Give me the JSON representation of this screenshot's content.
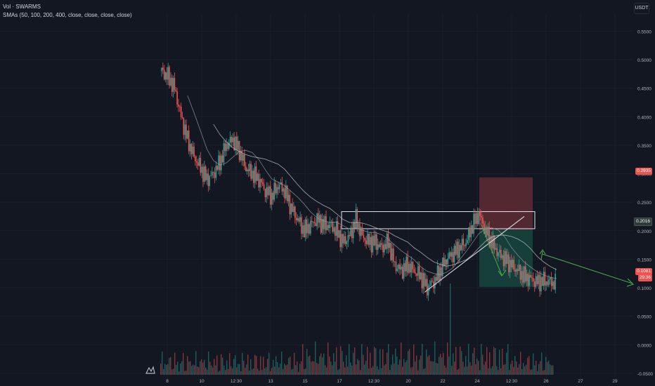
{
  "legend": {
    "title": "Vol · SWARMS",
    "smas": "SMAs (50, 100, 200, 400, close, close, close, close)"
  },
  "currency": "USDT",
  "colors": {
    "background": "#131722",
    "grid": "#1b1f2b",
    "up": "#26a69a",
    "down": "#ef5350",
    "sma": "#9598a1",
    "annotation": "#4caf50",
    "stop_zone": "#5b2a33",
    "target_zone": "#17423d"
  },
  "price_tags": {
    "stop": "0.2935",
    "entry": "0.2016",
    "current": "0.1081",
    "countdown": "29:36"
  },
  "chart_data": {
    "type": "candlestick",
    "title": "Vol · SWARMS",
    "y_ticks": [
      "0.5500",
      "0.5000",
      "0.4500",
      "0.4000",
      "0.3500",
      "0.3000",
      "0.2500",
      "0.2000",
      "0.1500",
      "0.1000",
      "0.0500",
      "0.0000",
      "-0.0500"
    ],
    "ylim": [
      -0.06,
      0.58
    ],
    "x_ticks": [
      "8",
      "10",
      "12:30",
      "13",
      "15",
      "17",
      "12:30",
      "20",
      "22",
      "24",
      "12:30",
      "26",
      "27",
      "29"
    ],
    "close_path": [
      [
        0,
        0.48
      ],
      [
        1,
        0.47
      ],
      [
        2,
        0.45
      ],
      [
        3,
        0.4
      ],
      [
        4,
        0.36
      ],
      [
        5,
        0.33
      ],
      [
        6,
        0.31
      ],
      [
        7,
        0.29
      ],
      [
        8,
        0.3
      ],
      [
        9,
        0.32
      ],
      [
        10,
        0.35
      ],
      [
        11,
        0.36
      ],
      [
        12,
        0.34
      ],
      [
        13,
        0.31
      ],
      [
        14,
        0.3
      ],
      [
        15,
        0.29
      ],
      [
        16,
        0.27
      ],
      [
        17,
        0.26
      ],
      [
        18,
        0.28
      ],
      [
        19,
        0.27
      ],
      [
        20,
        0.24
      ],
      [
        21,
        0.22
      ],
      [
        22,
        0.2
      ],
      [
        23,
        0.21
      ],
      [
        24,
        0.22
      ],
      [
        25,
        0.21
      ],
      [
        26,
        0.21
      ],
      [
        27,
        0.2
      ],
      [
        28,
        0.18
      ],
      [
        29,
        0.19
      ],
      [
        30,
        0.22
      ],
      [
        31,
        0.19
      ],
      [
        32,
        0.18
      ],
      [
        33,
        0.18
      ],
      [
        34,
        0.17
      ],
      [
        35,
        0.18
      ],
      [
        36,
        0.14
      ],
      [
        37,
        0.13
      ],
      [
        38,
        0.14
      ],
      [
        39,
        0.13
      ],
      [
        40,
        0.12
      ],
      [
        41,
        0.1
      ],
      [
        42,
        0.11
      ],
      [
        43,
        0.13
      ],
      [
        44,
        0.15
      ],
      [
        45,
        0.16
      ],
      [
        46,
        0.17
      ],
      [
        47,
        0.18
      ],
      [
        48,
        0.21
      ],
      [
        49,
        0.23
      ],
      [
        50,
        0.2
      ],
      [
        51,
        0.18
      ],
      [
        52,
        0.16
      ],
      [
        53,
        0.15
      ],
      [
        54,
        0.14
      ],
      [
        55,
        0.13
      ],
      [
        56,
        0.12
      ],
      [
        57,
        0.115
      ],
      [
        58,
        0.11
      ],
      [
        59,
        0.112
      ],
      [
        60,
        0.11
      ],
      [
        61,
        0.108
      ]
    ],
    "stop_level": 0.2935,
    "entry_level": 0.2016,
    "target_level": 0.1015,
    "last_price": 0.1081,
    "resistance_zone": [
      0.2035,
      0.2335
    ],
    "volume_note": "volume histogram at bottom",
    "grid": true
  }
}
